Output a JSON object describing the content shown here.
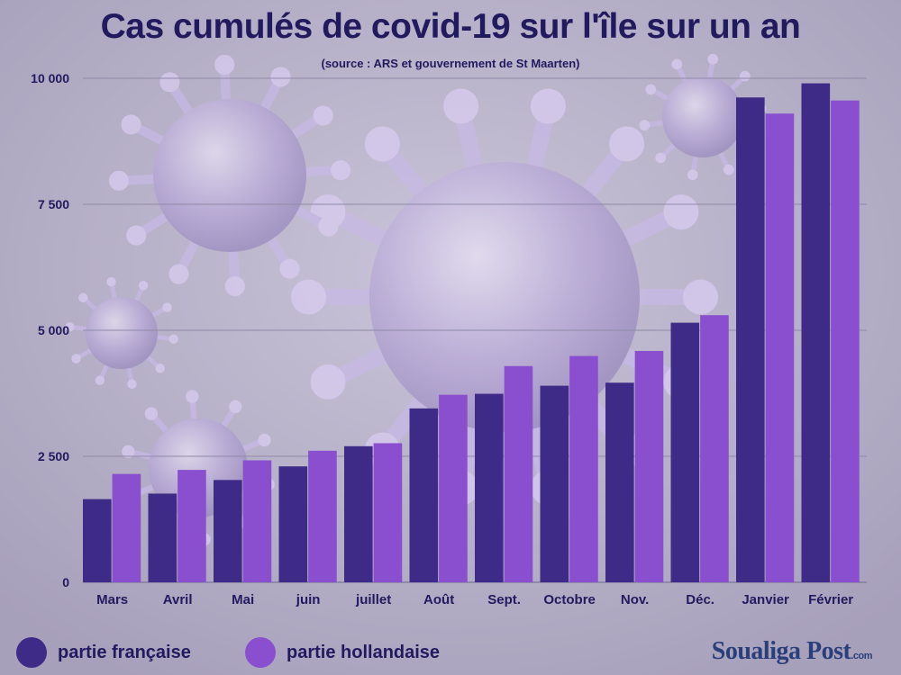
{
  "header": {
    "title": "Cas cumulés de covid-19 sur l'île sur un an",
    "subtitle": "(source : ARS et gouvernement de St Maarten)"
  },
  "legend": {
    "items": [
      {
        "label": "partie française",
        "color": "#3d2b87"
      },
      {
        "label": "partie hollandaise",
        "color": "#8a4fcf"
      }
    ]
  },
  "brand": {
    "name": "Soualiga Post",
    "suffix": ".com"
  },
  "colors": {
    "title": "#221a5e",
    "grid": "#8f8aa7",
    "text": "#221a5e"
  },
  "chart_data": {
    "type": "bar",
    "title": "Cas cumulés de covid-19 sur l'île sur un an",
    "subtitle": "(source : ARS et gouvernement de St Maarten)",
    "categories": [
      "Mars",
      "Avril",
      "Mai",
      "juin",
      "juillet",
      "Août",
      "Sept.",
      "Octobre",
      "Nov.",
      "Déc.",
      "Janvier",
      "Février"
    ],
    "series": [
      {
        "name": "partie française",
        "color": "#3d2b87",
        "values": [
          1650,
          1760,
          2030,
          2300,
          2700,
          3450,
          3740,
          3900,
          3960,
          5150,
          9620,
          9900
        ]
      },
      {
        "name": "partie hollandaise",
        "color": "#8a4fcf",
        "values": [
          2150,
          2230,
          2420,
          2610,
          2760,
          3720,
          4290,
          4490,
          4590,
          5300,
          9300,
          9560
        ]
      }
    ],
    "yticks": [
      0,
      2500,
      5000,
      7500,
      10000
    ],
    "ytick_labels": [
      "0",
      "2 500",
      "5 000",
      "7 500",
      "10 000"
    ],
    "ylim": [
      0,
      10000
    ],
    "grid": true,
    "legend_position": "bottom-left"
  }
}
